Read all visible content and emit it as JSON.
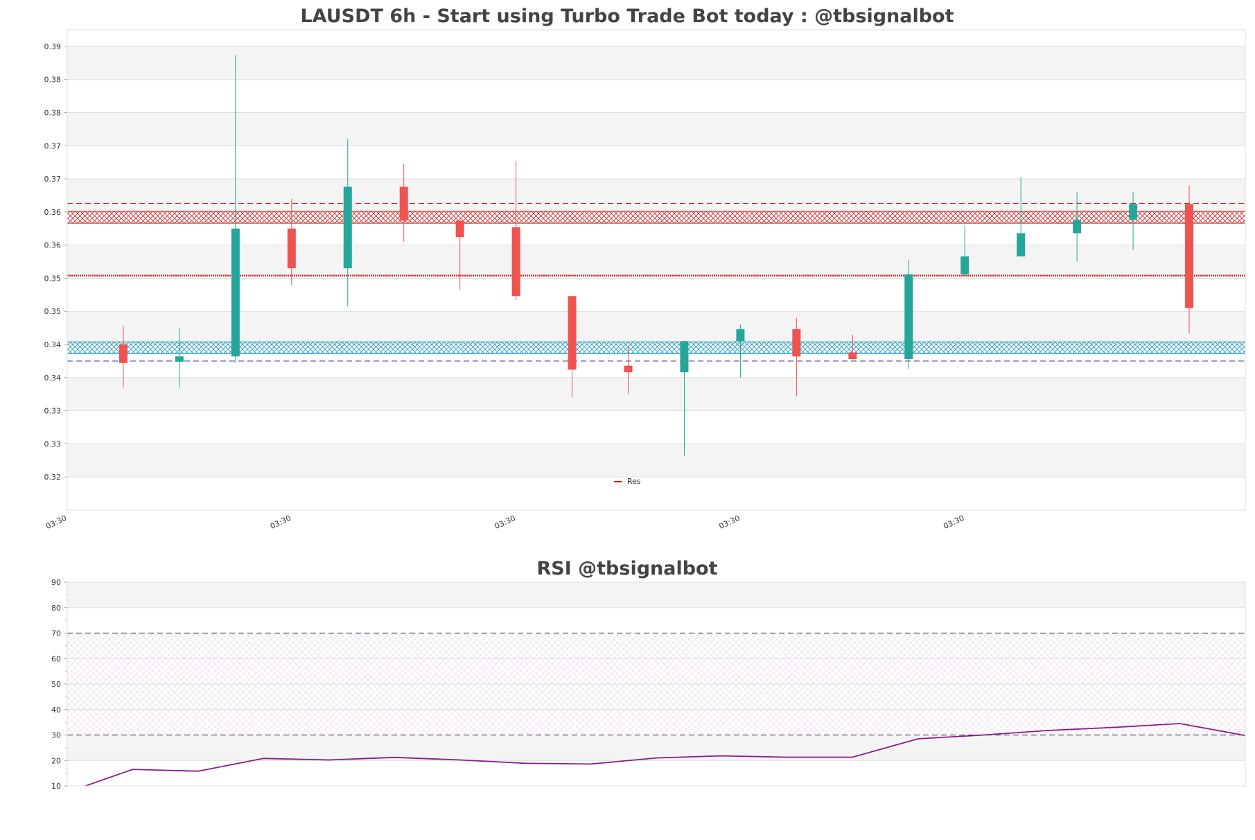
{
  "colors": {
    "up": "#26a69a",
    "down": "#ef5350",
    "resistance": "#cc2222",
    "support": "#1a9ac0",
    "support_dash": "#4a4a9a",
    "rsi_line": "#8b1a8b",
    "band": "#f4f4f4",
    "grid": "#dddddd",
    "title": "#444444"
  },
  "chart_data": [
    {
      "type": "candlestick",
      "title": "LAUSDT 6h - Start using Turbo Trade Bot today : @tbsignalbot",
      "ylim": [
        0.32,
        0.3925
      ],
      "y_ticks": [
        {
          "value": 0.39,
          "label": "0.39"
        },
        {
          "value": 0.385,
          "label": "0.38"
        },
        {
          "value": 0.38,
          "label": "0.38"
        },
        {
          "value": 0.375,
          "label": "0.37"
        },
        {
          "value": 0.37,
          "label": "0.37"
        },
        {
          "value": 0.365,
          "label": "0.36"
        },
        {
          "value": 0.36,
          "label": "0.36"
        },
        {
          "value": 0.355,
          "label": "0.35"
        },
        {
          "value": 0.35,
          "label": "0.35"
        },
        {
          "value": 0.345,
          "label": "0.34"
        },
        {
          "value": 0.34,
          "label": "0.34"
        },
        {
          "value": 0.335,
          "label": "0.33"
        },
        {
          "value": 0.33,
          "label": "0.33"
        },
        {
          "value": 0.325,
          "label": "0.32"
        }
      ],
      "x_ticks": [
        {
          "index": -1,
          "label": "03:30"
        },
        {
          "index": 3,
          "label": "03:30"
        },
        {
          "index": 7,
          "label": "03:30"
        },
        {
          "index": 11,
          "label": "03:30"
        },
        {
          "index": 15,
          "label": "03:30"
        }
      ],
      "candles": [
        {
          "open": 0.345,
          "high": 0.3478,
          "low": 0.3385,
          "close": 0.3422
        },
        {
          "open": 0.3424,
          "high": 0.3475,
          "low": 0.3385,
          "close": 0.3432
        },
        {
          "open": 0.3432,
          "high": 0.3887,
          "low": 0.3422,
          "close": 0.3625
        },
        {
          "open": 0.3625,
          "high": 0.367,
          "low": 0.354,
          "close": 0.3565
        },
        {
          "open": 0.3565,
          "high": 0.376,
          "low": 0.3507,
          "close": 0.3688
        },
        {
          "open": 0.3688,
          "high": 0.3723,
          "low": 0.3605,
          "close": 0.3637
        },
        {
          "open": 0.3637,
          "high": 0.3637,
          "low": 0.3533,
          "close": 0.3612
        },
        {
          "open": 0.3627,
          "high": 0.3727,
          "low": 0.3517,
          "close": 0.3523
        },
        {
          "open": 0.3523,
          "high": 0.352,
          "low": 0.337,
          "close": 0.3412
        },
        {
          "open": 0.3418,
          "high": 0.3448,
          "low": 0.3375,
          "close": 0.3408
        },
        {
          "open": 0.3408,
          "high": 0.3456,
          "low": 0.3282,
          "close": 0.3455
        },
        {
          "open": 0.3455,
          "high": 0.348,
          "low": 0.34,
          "close": 0.3473
        },
        {
          "open": 0.3473,
          "high": 0.349,
          "low": 0.3372,
          "close": 0.3432
        },
        {
          "open": 0.3438,
          "high": 0.3465,
          "low": 0.343,
          "close": 0.3428
        },
        {
          "open": 0.3428,
          "high": 0.3578,
          "low": 0.3413,
          "close": 0.3556
        },
        {
          "open": 0.3556,
          "high": 0.363,
          "low": 0.3555,
          "close": 0.3583
        },
        {
          "open": 0.3583,
          "high": 0.3702,
          "low": 0.3585,
          "close": 0.3618
        },
        {
          "open": 0.3618,
          "high": 0.368,
          "low": 0.3575,
          "close": 0.3638
        },
        {
          "open": 0.3638,
          "high": 0.368,
          "low": 0.3593,
          "close": 0.3662
        },
        {
          "open": 0.3662,
          "high": 0.369,
          "low": 0.3467,
          "close": 0.3505
        }
      ],
      "resistance_zone": [
        0.3633,
        0.3651
      ],
      "resistance_dashed": 0.3663,
      "resistance_dotted": 0.3554,
      "support_zone": [
        0.3436,
        0.3454
      ],
      "support_dashed": 0.3425,
      "legend": [
        {
          "label": "Res"
        }
      ]
    },
    {
      "type": "line",
      "title": "RSI @tbsignalbot",
      "ylim": [
        10,
        90
      ],
      "y_ticks": [
        90,
        80,
        70,
        60,
        50,
        40,
        30,
        20,
        10
      ],
      "overbought": 70,
      "oversold": 30,
      "series": [
        {
          "name": "RSI",
          "values": [
            7.5,
            16.5,
            15.8,
            20.8,
            20.2,
            21.2,
            20.2,
            18.9,
            18.6,
            21.0,
            21.8,
            21.3,
            21.3,
            28.5,
            30.0,
            31.8,
            33.0,
            34.5,
            29.8
          ]
        }
      ]
    }
  ]
}
